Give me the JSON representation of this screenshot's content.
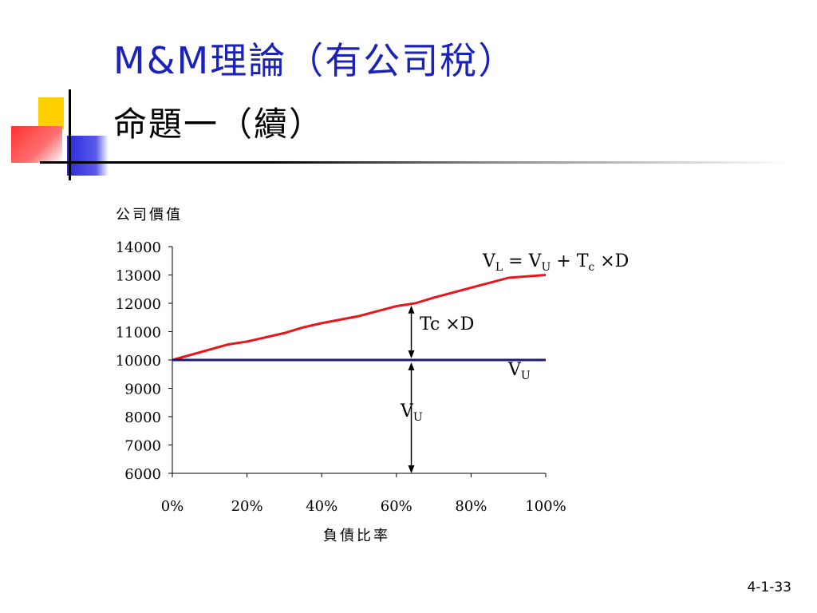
{
  "slide": {
    "title_line1": "M&M理論（有公司稅）",
    "title_line2": "命題一（續）",
    "slide_number": "4-1-33",
    "title_color": "#1a22b8"
  },
  "chart_data": {
    "type": "line",
    "ylabel": "公司價值",
    "xlabel": "負債比率",
    "ylim": [
      6000,
      14000
    ],
    "xlim": [
      0,
      1
    ],
    "yticks": [
      "14000",
      "13000",
      "12000",
      "11000",
      "10000",
      "9000",
      "8000",
      "7000",
      "6000"
    ],
    "xticks": [
      "0%",
      "20%",
      "40%",
      "60%",
      "80%",
      "100%"
    ],
    "series": [
      {
        "name": "VL = VU + Tc ×D",
        "color": "#e8151b",
        "x": [
          0,
          0.15,
          0.2,
          0.3,
          0.35,
          0.4,
          0.5,
          0.6,
          0.65,
          0.7,
          0.8,
          0.9,
          1.0
        ],
        "y": [
          10000,
          10550,
          10650,
          10950,
          11150,
          11300,
          11550,
          11900,
          12000,
          12200,
          12550,
          12900,
          13000
        ]
      },
      {
        "name": "VU",
        "color": "#1a1a7a",
        "x": [
          0,
          1.0
        ],
        "y": [
          10000,
          10000
        ]
      }
    ],
    "annotations": {
      "vl_equation": {
        "main": "V",
        "sub1": "L",
        "eq": " = V",
        "sub2": "U",
        "plus": " + T",
        "sub3": "c",
        "tail": " ×D"
      },
      "tax_shield": "Tc ×D",
      "vu_right": {
        "main": "V",
        "sub": "U"
      },
      "vu_arrow": {
        "main": "V",
        "sub": "U"
      },
      "arrow_x": 0.64
    }
  }
}
